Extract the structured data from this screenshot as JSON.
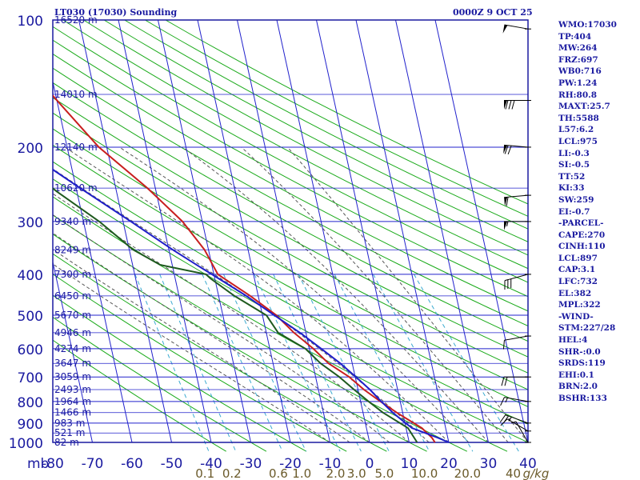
{
  "header": {
    "title": "LT030 (17030) Sounding",
    "datetime": "0000Z  9 OCT 25"
  },
  "colors": {
    "frame": "#1a1aa0",
    "isotherm_grid": "#2222cc",
    "dry_adiabat": "#1aaa1a",
    "moist_adiabat": "#555555",
    "mixing_ratio": "#3aaad0",
    "temperature": "#c81e1e",
    "dewpoint": "#1e5a1e",
    "parcel": "#1e1ec8",
    "mixing_label": "#6a5a2a"
  },
  "sidebar": [
    "WMO:17030",
    "TP:404",
    "MW:264",
    "FRZ:697",
    "WB0:716",
    "PW:1.24",
    "RH:80.8",
    "MAXT:25.7",
    "TH:5588",
    "L57:6.2",
    "LCL:975",
    "LI:-0.3",
    "SI:-0.5",
    "TT:52",
    "KI:33",
    "SW:259",
    "EI:-0.7",
    "-PARCEL-",
    "CAPE:270",
    "CINH:110",
    "LCL:897",
    "CAP:3.1",
    "LFC:732",
    "EL:382",
    "MPL:322",
    "-WIND-",
    "STM:227/28",
    "HEL:4",
    "SHR-:0.0",
    "SRDS:119",
    "EHI:0.1",
    "BRN:2.0",
    "BSHR:133"
  ],
  "chart_data": {
    "type": "line",
    "diagram": "skew-T",
    "x_unit_label": "mb",
    "xlim": [
      -80,
      40
    ],
    "ylim": [
      1000,
      100
    ],
    "y_scale": "log",
    "pressure_ticks": [
      100,
      200,
      300,
      400,
      500,
      600,
      700,
      800,
      900,
      1000
    ],
    "temperature_ticks": [
      -80,
      -70,
      -60,
      -50,
      -40,
      -30,
      -20,
      -10,
      0,
      10,
      20,
      30,
      40
    ],
    "temperature_tick_labels": [
      "-80",
      "-70",
      "-60",
      "-50",
      "-40",
      "-30",
      "-20",
      "-10",
      "0",
      "10",
      "20",
      "30",
      "40"
    ],
    "height_labels": [
      {
        "p": 100,
        "label": "16520 m"
      },
      {
        "p": 150,
        "label": "14010 m"
      },
      {
        "p": 200,
        "label": "12140 m"
      },
      {
        "p": 250,
        "label": "10620 m"
      },
      {
        "p": 300,
        "label": "9340 m"
      },
      {
        "p": 350,
        "label": "8249 m"
      },
      {
        "p": 400,
        "label": "7300 m"
      },
      {
        "p": 450,
        "label": "6450 m"
      },
      {
        "p": 500,
        "label": "5670 m"
      },
      {
        "p": 550,
        "label": "4946 m"
      },
      {
        "p": 600,
        "label": "4274 m"
      },
      {
        "p": 650,
        "label": "3647 m"
      },
      {
        "p": 700,
        "label": "3059 m"
      },
      {
        "p": 750,
        "label": "2493 m"
      },
      {
        "p": 800,
        "label": "1964 m"
      },
      {
        "p": 850,
        "label": "1466 m"
      },
      {
        "p": 900,
        "label": "983 m"
      },
      {
        "p": 950,
        "label": "521 m"
      },
      {
        "p": 1000,
        "label": "82 m"
      }
    ],
    "mixing_ratio_labels": [
      "0.1",
      "0.2",
      "0.6",
      "1.0",
      "2.0",
      "3.0",
      "5.0",
      "10.0",
      "20.0",
      "40"
    ],
    "mixing_ratio_values": [
      0.1,
      0.2,
      0.6,
      1.0,
      2.0,
      3.0,
      5.0,
      10.0,
      20.0,
      40
    ],
    "mixing_ratio_unit": "g/kg",
    "series": [
      {
        "key": "temperature",
        "points": [
          [
            1000,
            16.5
          ],
          [
            975,
            16
          ],
          [
            925,
            14
          ],
          [
            850,
            8.5
          ],
          [
            800,
            5
          ],
          [
            750,
            1.5
          ],
          [
            700,
            -1.5
          ],
          [
            650,
            -6
          ],
          [
            600,
            -9
          ],
          [
            550,
            -13
          ],
          [
            500,
            -16.5
          ],
          [
            450,
            -22
          ],
          [
            400,
            -29
          ],
          [
            350,
            -31
          ],
          [
            300,
            -35
          ],
          [
            250,
            -42
          ],
          [
            200,
            -52
          ],
          [
            150,
            -61
          ],
          [
            110,
            -65
          ],
          [
            100,
            -65
          ]
        ]
      },
      {
        "key": "dewpoint",
        "points": [
          [
            1000,
            12
          ],
          [
            925,
            10.5
          ],
          [
            850,
            5
          ],
          [
            800,
            2
          ],
          [
            750,
            -1
          ],
          [
            700,
            -4
          ],
          [
            650,
            -8
          ],
          [
            600,
            -11
          ],
          [
            550,
            -17
          ],
          [
            500,
            -19
          ],
          [
            450,
            -26
          ],
          [
            410,
            -31
          ],
          [
            400,
            -32
          ],
          [
            380,
            -43
          ],
          [
            350,
            -49
          ],
          [
            300,
            -56
          ],
          [
            255,
            -65
          ],
          [
            250,
            -66
          ]
        ]
      },
      {
        "key": "parcel",
        "points": [
          [
            1000,
            20
          ],
          [
            975,
            17.5
          ],
          [
            925,
            11.5
          ],
          [
            897,
            10
          ],
          [
            850,
            7.5
          ],
          [
            800,
            5.2
          ],
          [
            750,
            3
          ],
          [
            700,
            0.2
          ],
          [
            650,
            -3
          ],
          [
            600,
            -7
          ],
          [
            550,
            -11.5
          ],
          [
            500,
            -17
          ],
          [
            450,
            -23
          ],
          [
            400,
            -30.5
          ],
          [
            382,
            -33.5
          ],
          [
            350,
            -39
          ],
          [
            300,
            -48
          ],
          [
            250,
            -59
          ],
          [
            200,
            -72
          ],
          [
            170,
            -80
          ]
        ]
      }
    ],
    "wind_barbs": [
      {
        "p": 1000,
        "dir": 330,
        "spd": 5
      },
      {
        "p": 940,
        "dir": 300,
        "spd": 10
      },
      {
        "p": 900,
        "dir": 290,
        "spd": 25
      },
      {
        "p": 800,
        "dir": 280,
        "spd": 15
      },
      {
        "p": 700,
        "dir": 270,
        "spd": 20
      },
      {
        "p": 560,
        "dir": 260,
        "spd": 10
      },
      {
        "p": 400,
        "dir": 255,
        "spd": 30
      },
      {
        "p": 300,
        "dir": 270,
        "spd": 55
      },
      {
        "p": 260,
        "dir": 265,
        "spd": 60
      },
      {
        "p": 200,
        "dir": 275,
        "spd": 70
      },
      {
        "p": 155,
        "dir": 270,
        "spd": 80
      },
      {
        "p": 105,
        "dir": 280,
        "spd": 50
      }
    ]
  }
}
